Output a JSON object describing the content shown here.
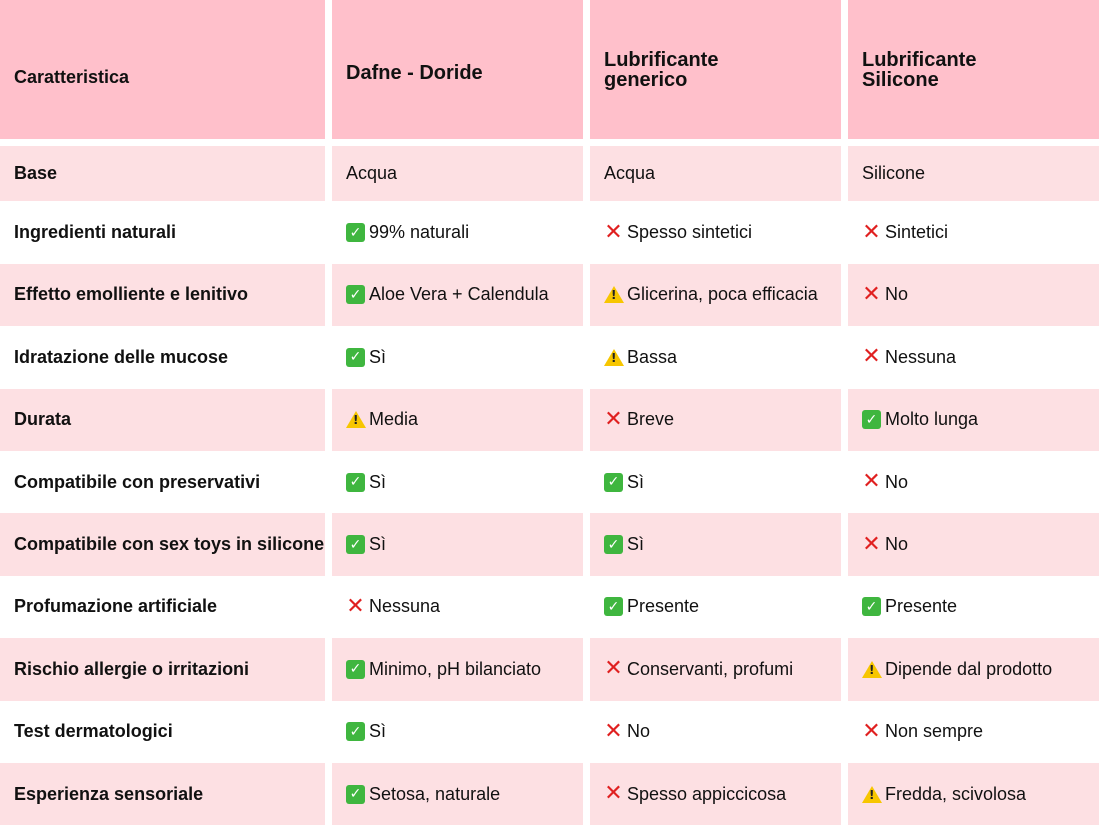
{
  "headers": [
    "Caratteristica",
    "Dafne - Doride",
    "Lubrificante generico",
    "Lubrificante Silicone"
  ],
  "rows": [
    {
      "feature": "Base",
      "cells": [
        {
          "icon": "",
          "text": "Acqua"
        },
        {
          "icon": "",
          "text": "Acqua"
        },
        {
          "icon": "",
          "text": "Silicone"
        }
      ]
    },
    {
      "feature": "Ingredienti naturali",
      "cells": [
        {
          "icon": "check-icon",
          "text": "99% naturali"
        },
        {
          "icon": "cross-icon",
          "text": "Spesso sintetici"
        },
        {
          "icon": "cross-icon",
          "text": "Sintetici"
        }
      ]
    },
    {
      "feature": "Effetto emolliente e lenitivo",
      "cells": [
        {
          "icon": "check-icon",
          "text": "Aloe Vera + Calendula"
        },
        {
          "icon": "warning-icon",
          "text": "Glicerina, poca efficacia"
        },
        {
          "icon": "cross-icon",
          "text": "No"
        }
      ]
    },
    {
      "feature": "Idratazione delle mucose",
      "cells": [
        {
          "icon": "check-icon",
          "text": "Sì"
        },
        {
          "icon": "warning-icon",
          "text": "Bassa"
        },
        {
          "icon": "cross-icon",
          "text": "Nessuna"
        }
      ]
    },
    {
      "feature": "Durata",
      "cells": [
        {
          "icon": "warning-icon",
          "text": "Media"
        },
        {
          "icon": "cross-icon",
          "text": "Breve"
        },
        {
          "icon": "check-icon",
          "text": "Molto lunga"
        }
      ]
    },
    {
      "feature": "Compatibile con preservativi",
      "cells": [
        {
          "icon": "check-icon",
          "text": "Sì"
        },
        {
          "icon": "check-icon",
          "text": "Sì"
        },
        {
          "icon": "cross-icon",
          "text": "No"
        }
      ]
    },
    {
      "feature": "Compatibile con sex toys in silicone",
      "cells": [
        {
          "icon": "check-icon",
          "text": "Sì"
        },
        {
          "icon": "check-icon",
          "text": "Sì"
        },
        {
          "icon": "cross-icon",
          "text": "No"
        }
      ]
    },
    {
      "feature": "Profumazione artificiale",
      "cells": [
        {
          "icon": "cross-icon",
          "text": "Nessuna"
        },
        {
          "icon": "check-icon",
          "text": "Presente"
        },
        {
          "icon": "check-icon",
          "text": "Presente"
        }
      ]
    },
    {
      "feature": "Rischio allergie o irritazioni",
      "cells": [
        {
          "icon": "check-icon",
          "text": "Minimo, pH bilanciato"
        },
        {
          "icon": "cross-icon",
          "text": "Conservanti, profumi"
        },
        {
          "icon": "warning-icon",
          "text": "Dipende dal prodotto"
        }
      ]
    },
    {
      "feature": "Test dermatologici",
      "cells": [
        {
          "icon": "check-icon",
          "text": "Sì"
        },
        {
          "icon": "cross-icon",
          "text": "No"
        },
        {
          "icon": "cross-icon",
          "text": "Non sempre"
        }
      ]
    },
    {
      "feature": "Esperienza sensoriale",
      "cells": [
        {
          "icon": "check-icon",
          "text": "Setosa, naturale"
        },
        {
          "icon": "cross-icon",
          "text": "Spesso appiccicosa"
        },
        {
          "icon": "warning-icon",
          "text": "Fredda, scivolosa"
        }
      ]
    }
  ],
  "colors": {
    "header_bg": "#ffc0cb",
    "row_pink": "#fde0e3",
    "row_white": "#ffffff",
    "check": "#3fb63f",
    "cross": "#e02020",
    "warning": "#f7c600"
  }
}
